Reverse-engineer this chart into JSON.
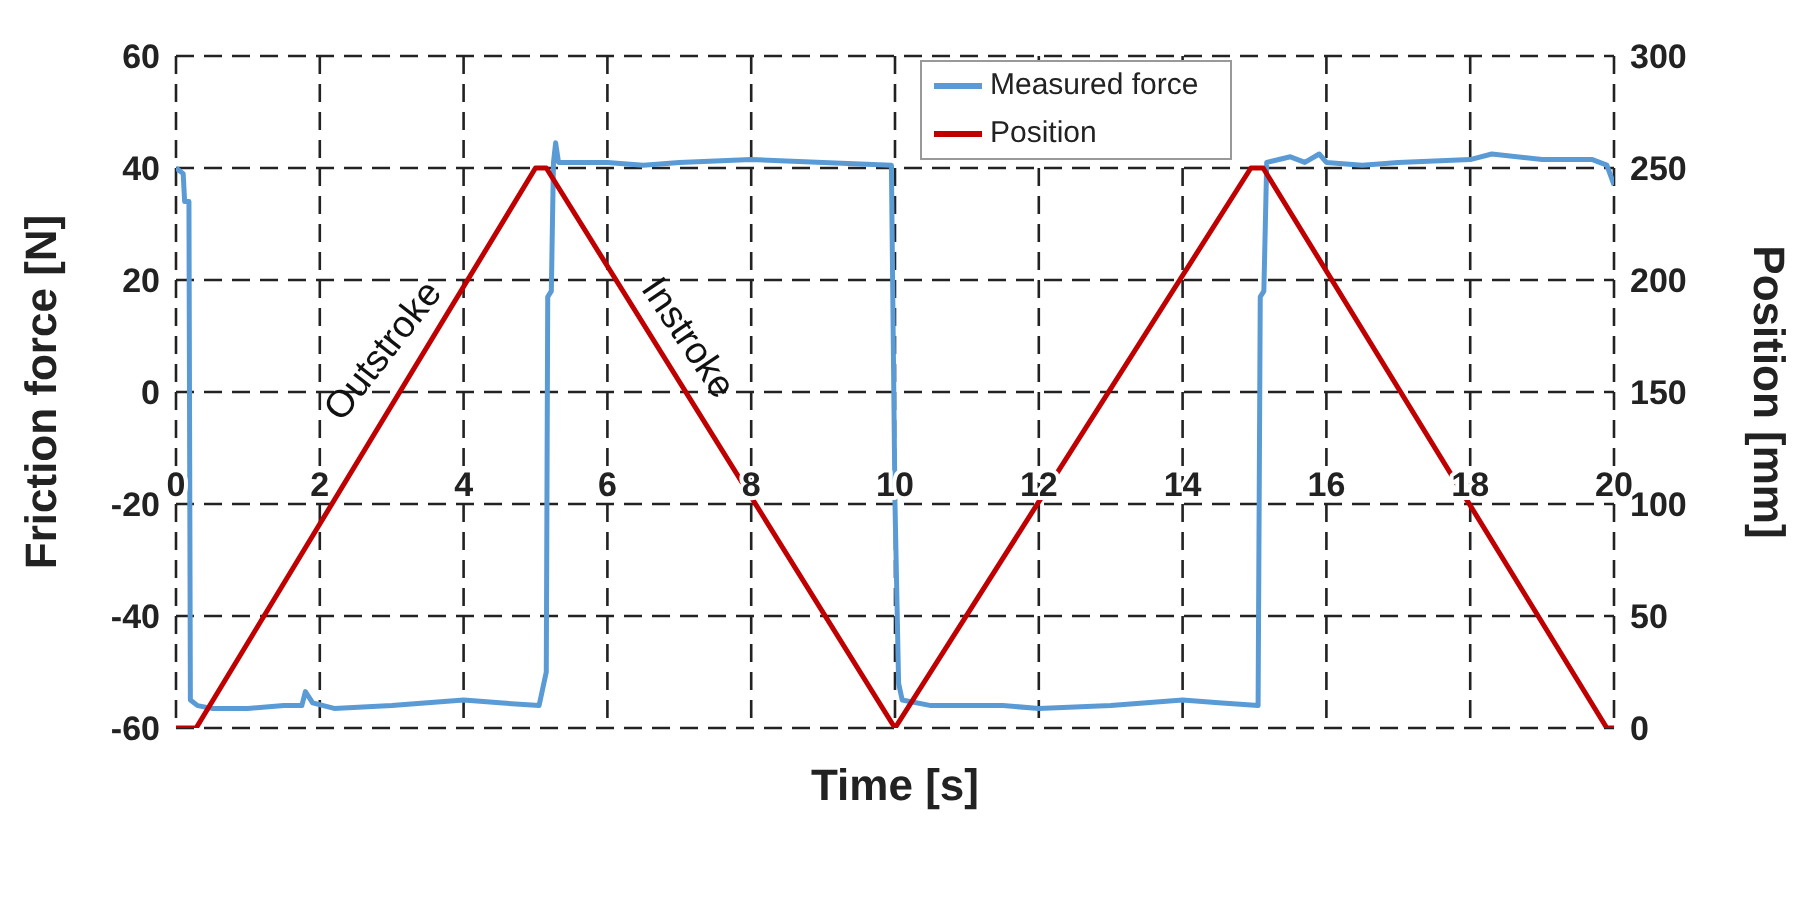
{
  "chart_data": {
    "type": "line",
    "xlabel": "Time [s]",
    "ylabel": "Friction force [N]",
    "y2label": "Position [mm]",
    "xlim": [
      0,
      20
    ],
    "xticks": [
      0,
      2,
      4,
      6,
      8,
      10,
      12,
      14,
      16,
      18,
      20
    ],
    "ylim": [
      -60,
      60
    ],
    "yticks": [
      -60,
      -40,
      -20,
      0,
      20,
      40,
      60
    ],
    "y2lim": [
      0,
      300
    ],
    "y2ticks": [
      0,
      50,
      100,
      150,
      200,
      250,
      300
    ],
    "grid": true,
    "legend": "top",
    "marker": "none",
    "line_style": "solid",
    "annotations": [
      "Outstroke",
      "Instroke"
    ],
    "series": [
      {
        "name": "Measured force",
        "color": "#5b9bd5",
        "x": [
          0,
          0.1,
          0.12,
          0.18,
          0.2,
          0.3,
          0.5,
          1,
          1.5,
          1.75,
          1.8,
          1.9,
          2.2,
          3,
          3.5,
          4,
          4.5,
          5.05,
          5.1,
          5.15,
          5.17,
          5.22,
          5.25,
          5.28,
          5.32,
          6,
          6.5,
          7,
          8,
          9,
          9.95,
          10,
          10.05,
          10.1,
          10.5,
          11,
          11.5,
          12,
          13,
          14,
          14.5,
          15.05,
          15.08,
          15.13,
          15.17,
          15.5,
          15.7,
          15.9,
          16,
          16.5,
          17,
          18,
          18.3,
          19,
          19.7,
          19.9,
          20
        ],
        "values": [
          40,
          39,
          34,
          34,
          -55,
          -56,
          -56.5,
          -56.5,
          -56,
          -56,
          -53.5,
          -55.5,
          -56.5,
          -56,
          -55.5,
          -55,
          -55.5,
          -56,
          -53,
          -50,
          17,
          18,
          41,
          44.5,
          41,
          41,
          40.5,
          41,
          41.5,
          41,
          40.5,
          -20,
          -52,
          -55,
          -56,
          -56,
          -56,
          -56.5,
          -56,
          -55,
          -55.5,
          -56,
          17,
          18,
          41,
          42,
          41,
          42.5,
          41,
          40.5,
          41,
          41.5,
          42.5,
          41.5,
          41.5,
          40.5,
          37
        ]
      },
      {
        "name": "Position",
        "color": "#c00000",
        "axis": "y2",
        "x": [
          0,
          0.28,
          5.0,
          5.15,
          10.0,
          14.95,
          15.12,
          19.9,
          20
        ],
        "values": [
          0,
          0,
          250,
          250,
          0,
          250,
          250,
          0,
          0
        ]
      }
    ]
  }
}
